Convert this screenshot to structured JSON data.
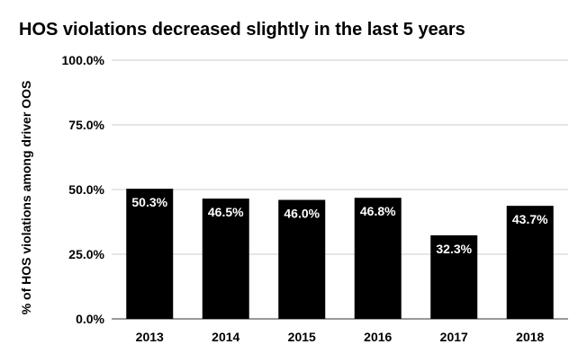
{
  "chart_data": {
    "type": "bar",
    "title": "HOS violations decreased slightly in the last 5 years",
    "xlabel": "",
    "ylabel": "% of HOS violations among driver OOS",
    "categories": [
      "2013",
      "2014",
      "2015",
      "2016",
      "2017",
      "2018"
    ],
    "values": [
      50.3,
      46.5,
      46.0,
      46.8,
      32.3,
      43.7
    ],
    "value_labels": [
      "50.3%",
      "46.5%",
      "46.0%",
      "46.8%",
      "32.3%",
      "43.7%"
    ],
    "ylim": [
      0,
      100
    ],
    "yticks": [
      0,
      25,
      50,
      75,
      100
    ],
    "ytick_labels": [
      "0.0%",
      "25.0%",
      "50.0%",
      "75.0%",
      "100.0%"
    ],
    "grid": true,
    "legend": "none",
    "colors": {
      "bar": "#000000",
      "data_label": "#ffffff",
      "grid": "#cccccc",
      "text": "#000000"
    }
  }
}
